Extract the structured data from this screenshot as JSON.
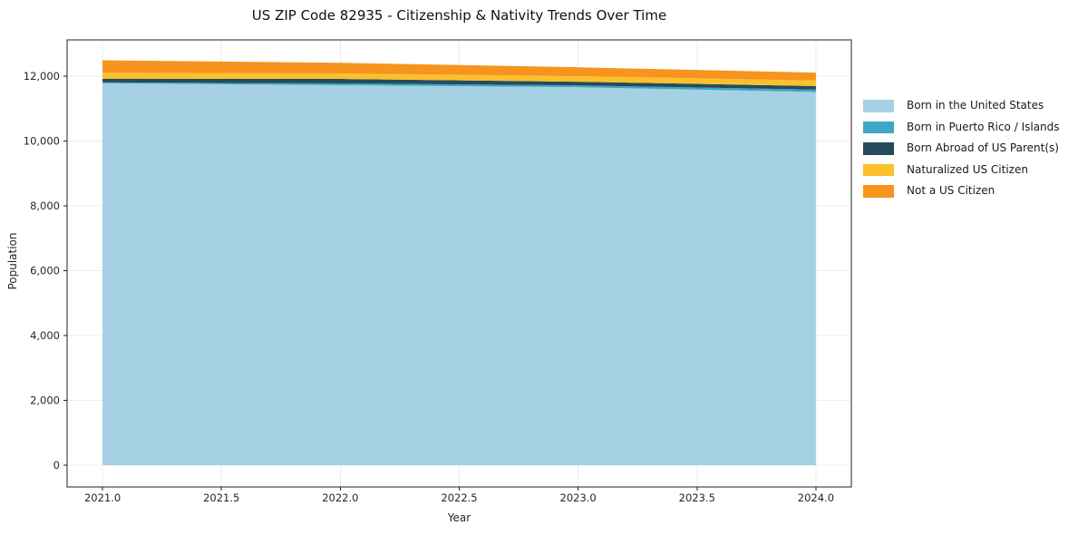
{
  "chart_data": {
    "type": "area",
    "stacked": true,
    "title": "US ZIP Code 82935 - Citizenship & Nativity Trends Over Time",
    "xlabel": "Year",
    "ylabel": "Population",
    "x": [
      2021,
      2022,
      2023,
      2024
    ],
    "series": [
      {
        "name": "Born in the United States",
        "color": "#a6d1e4",
        "values": [
          11780,
          11720,
          11660,
          11510
        ]
      },
      {
        "name": "Born in Puerto Rico / Islands",
        "color": "#3fa6c4",
        "values": [
          30,
          55,
          55,
          75
        ]
      },
      {
        "name": "Born Abroad of US Parent(s)",
        "color": "#254b5c",
        "values": [
          110,
          140,
          115,
          110
        ]
      },
      {
        "name": "Naturalized US Citizen",
        "color": "#fcc02d",
        "values": [
          190,
          170,
          170,
          170
        ]
      },
      {
        "name": "Not a US Citizen",
        "color": "#f6941e",
        "values": [
          380,
          325,
          275,
          245
        ]
      }
    ],
    "totals": [
      12490,
      12410,
      12275,
      12110
    ],
    "xlim": [
      2020.851,
      2024.149
    ],
    "ylim": [
      -671,
      13119
    ],
    "xticks": {
      "values": [
        2021.0,
        2021.5,
        2022.0,
        2022.5,
        2023.0,
        2023.5,
        2024.0
      ],
      "labels": [
        "2021.0",
        "2021.5",
        "2022.0",
        "2022.5",
        "2023.0",
        "2023.5",
        "2024.0"
      ]
    },
    "yticks": {
      "values": [
        0,
        2000,
        4000,
        6000,
        8000,
        10000,
        12000
      ],
      "labels": [
        "0",
        "2,000",
        "4,000",
        "6,000",
        "8,000",
        "10,000",
        "12,000"
      ]
    },
    "grid": true,
    "legend_position": "right-outside"
  },
  "colors": {
    "spine": "#222222",
    "grid": "#ececec",
    "tick_label": "#262626",
    "title": "#111111",
    "background": "#ffffff"
  }
}
